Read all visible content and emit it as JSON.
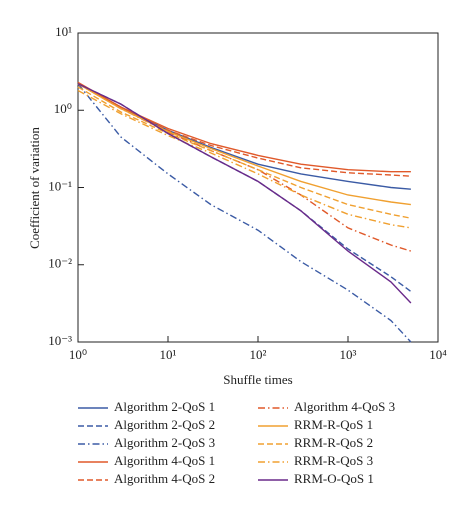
{
  "chart_data": {
    "type": "line",
    "xlabel": "Shuffle times",
    "ylabel": "Coefficient of variation",
    "xlog": true,
    "ylog": true,
    "xlim": [
      1,
      10000
    ],
    "ylim": [
      0.001,
      10
    ],
    "xticks": [
      {
        "value": 1,
        "label": "10⁰"
      },
      {
        "value": 10,
        "label": "10¹"
      },
      {
        "value": 100,
        "label": "10²"
      },
      {
        "value": 1000,
        "label": "10³"
      },
      {
        "value": 10000,
        "label": "10⁴"
      }
    ],
    "yticks": [
      {
        "value": 0.001,
        "label": "10⁻³"
      },
      {
        "value": 0.01,
        "label": "10⁻²"
      },
      {
        "value": 0.1,
        "label": "10⁻¹"
      },
      {
        "value": 1,
        "label": "10⁰"
      },
      {
        "value": 10,
        "label": "10¹"
      }
    ],
    "x": [
      1,
      3,
      10,
      30,
      100,
      300,
      1000,
      3000,
      5000
    ],
    "series": [
      {
        "name": "Algorithm 2-QoS 1",
        "color": "#3b5ba5",
        "dash": "solid",
        "values": [
          2.2,
          1.1,
          0.55,
          0.33,
          0.2,
          0.15,
          0.12,
          0.1,
          0.095
        ]
      },
      {
        "name": "Algorithm 2-QoS 2",
        "color": "#3b5ba5",
        "dash": "dashed",
        "values": [
          2.2,
          1.2,
          0.5,
          0.25,
          0.12,
          0.05,
          0.016,
          0.007,
          0.0045
        ]
      },
      {
        "name": "Algorithm 2-QoS 3",
        "color": "#3b5ba5",
        "dash": "dashdot",
        "values": [
          2.2,
          0.45,
          0.15,
          0.06,
          0.028,
          0.011,
          0.0047,
          0.0019,
          0.001
        ]
      },
      {
        "name": "Algorithm 4-QoS 1",
        "color": "#e0592a",
        "dash": "solid",
        "values": [
          2.3,
          1.1,
          0.58,
          0.37,
          0.26,
          0.2,
          0.17,
          0.16,
          0.16
        ]
      },
      {
        "name": "Algorithm 4-QoS 2",
        "color": "#e0592a",
        "dash": "dashed",
        "values": [
          2.2,
          1.05,
          0.55,
          0.35,
          0.24,
          0.18,
          0.155,
          0.145,
          0.14
        ]
      },
      {
        "name": "Algorithm 4-QoS 3",
        "color": "#e0592a",
        "dash": "dashdot",
        "values": [
          2.2,
          1.05,
          0.52,
          0.3,
          0.17,
          0.08,
          0.03,
          0.018,
          0.015
        ]
      },
      {
        "name": "RRM-R-QoS 1",
        "color": "#f0a030",
        "dash": "solid",
        "values": [
          2.2,
          1.05,
          0.53,
          0.32,
          0.19,
          0.12,
          0.08,
          0.065,
          0.06
        ]
      },
      {
        "name": "RRM-R-QoS 2",
        "color": "#f0a030",
        "dash": "dashed",
        "values": [
          2.0,
          0.95,
          0.5,
          0.3,
          0.17,
          0.1,
          0.06,
          0.045,
          0.04
        ]
      },
      {
        "name": "RRM-R-QoS 3",
        "color": "#f0a030",
        "dash": "dashdot",
        "values": [
          1.8,
          0.9,
          0.47,
          0.28,
          0.15,
          0.08,
          0.045,
          0.033,
          0.03
        ]
      },
      {
        "name": "RRM-O-QoS 1",
        "color": "#6a2a8a",
        "dash": "solid",
        "values": [
          2.2,
          1.2,
          0.5,
          0.25,
          0.12,
          0.05,
          0.015,
          0.006,
          0.0032
        ]
      }
    ]
  }
}
